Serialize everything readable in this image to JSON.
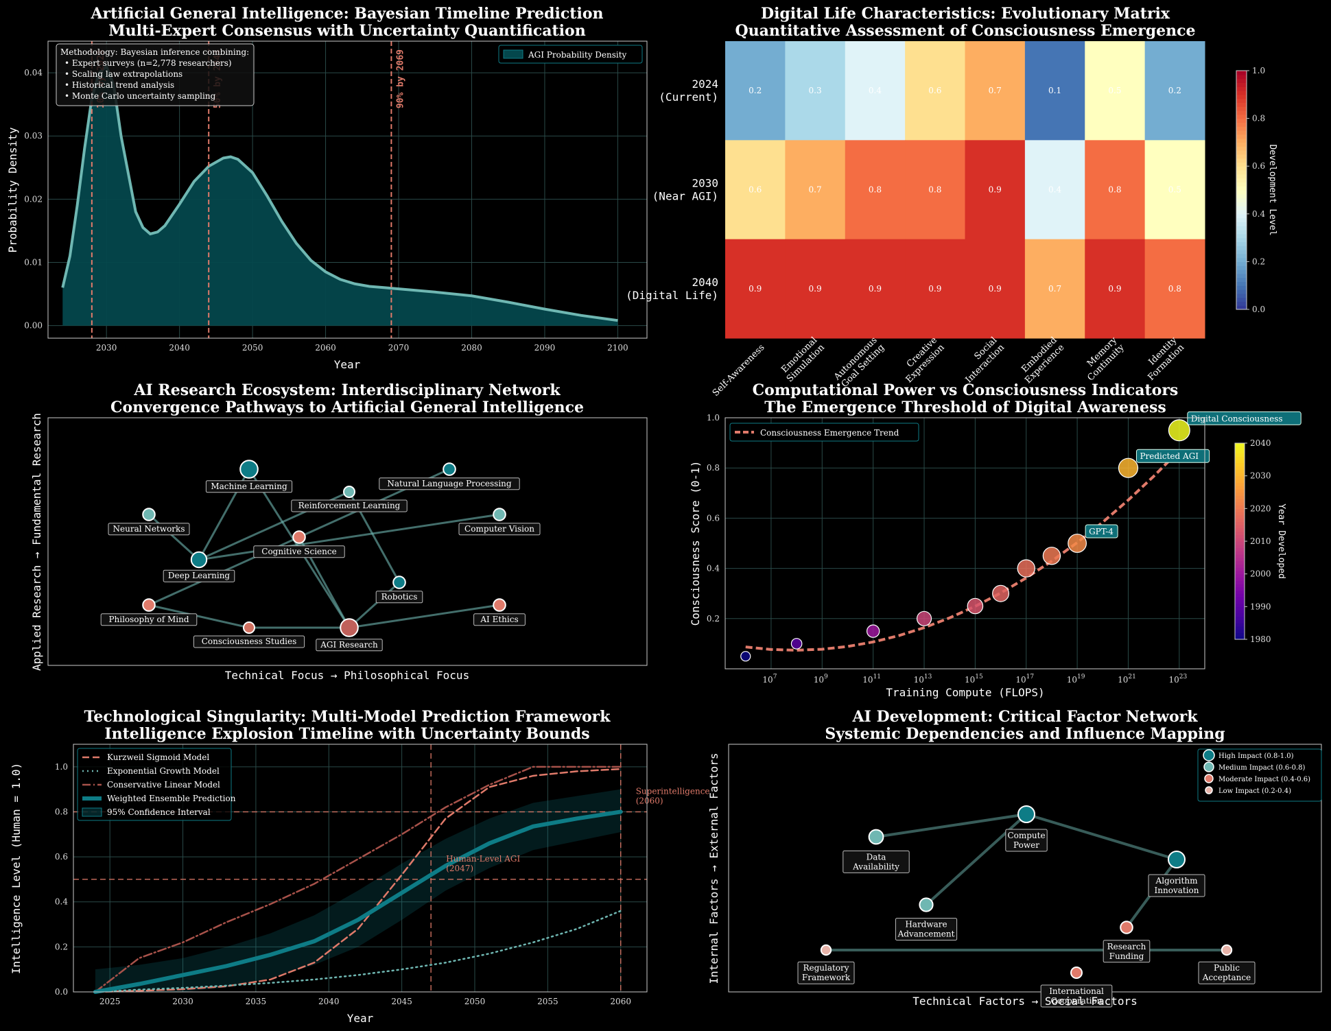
{
  "colors": {
    "teal": "#0e7c86",
    "tealLight": "#6fb7b2",
    "salmon": "#e07a6a",
    "bg": "#000000"
  },
  "chart_data": [
    {
      "id": "agi-timeline",
      "type": "area",
      "title": "Artificial General Intelligence: Bayesian Timeline Prediction",
      "subtitle": "Multi-Expert Consensus with Uncertainty Quantification",
      "xlabel": "Year",
      "ylabel": "Probability Density",
      "xlim": [
        2022,
        2104
      ],
      "ylim": [
        -0.002,
        0.045
      ],
      "xticks": [
        2030,
        2040,
        2050,
        2060,
        2070,
        2080,
        2090,
        2100
      ],
      "yticks": [
        0.0,
        0.01,
        0.02,
        0.03,
        0.04
      ],
      "ytick_labels": [
        "0.00",
        "0.01",
        "0.02",
        "0.03",
        "0.04"
      ],
      "legend": "AGI Probability Density",
      "legend_position": "top-right",
      "x": [
        2024,
        2025,
        2026,
        2027,
        2028,
        2029,
        2030,
        2031,
        2032,
        2033,
        2034,
        2035,
        2036,
        2037,
        2038,
        2040,
        2042,
        2044,
        2046,
        2047,
        2048,
        2050,
        2052,
        2054,
        2056,
        2058,
        2060,
        2062,
        2064,
        2066,
        2068,
        2070,
        2075,
        2080,
        2085,
        2090,
        2095,
        2100
      ],
      "y": [
        0.006,
        0.011,
        0.019,
        0.028,
        0.036,
        0.04,
        0.041,
        0.038,
        0.03,
        0.024,
        0.018,
        0.0155,
        0.0145,
        0.0148,
        0.0158,
        0.0192,
        0.0228,
        0.0252,
        0.0265,
        0.0267,
        0.0263,
        0.0242,
        0.0205,
        0.0165,
        0.013,
        0.0103,
        0.0085,
        0.0073,
        0.0066,
        0.0062,
        0.006,
        0.0058,
        0.0053,
        0.0047,
        0.0037,
        0.0026,
        0.0016,
        0.0008
      ],
      "vlines": [
        {
          "x": 2028,
          "label": "10% by 2028"
        },
        {
          "x": 2044,
          "label": "50% by 2044"
        },
        {
          "x": 2069,
          "label": "90% by 2069"
        }
      ],
      "methodology": [
        "Methodology: Bayesian inference combining:",
        "• Expert surveys (n=2,778 researchers)",
        "• Scaling law extrapolations",
        "• Historical trend analysis",
        "• Monte Carlo uncertainty sampling"
      ]
    },
    {
      "id": "digital-life-matrix",
      "type": "heatmap",
      "title": "Digital Life Characteristics: Evolutionary Matrix",
      "subtitle": "Quantitative Assessment of Consciousness Emergence",
      "rows": [
        [
          "2024",
          "(Current)"
        ],
        [
          "2030",
          "(Near AGI)"
        ],
        [
          "2040",
          "(Digital Life)"
        ]
      ],
      "columns": [
        [
          "Self-Awareness"
        ],
        [
          "Emotional",
          "Simulation"
        ],
        [
          "Autonomous",
          "Goal Setting"
        ],
        [
          "Creative",
          "Expression"
        ],
        [
          "Social",
          "Interaction"
        ],
        [
          "Embodied",
          "Experience"
        ],
        [
          "Memory",
          "Continuity"
        ],
        [
          "Identity",
          "Formation"
        ]
      ],
      "values": [
        [
          0.2,
          0.3,
          0.4,
          0.6,
          0.7,
          0.1,
          0.5,
          0.2
        ],
        [
          0.6,
          0.7,
          0.8,
          0.8,
          0.9,
          0.4,
          0.8,
          0.5
        ],
        [
          0.9,
          0.9,
          0.9,
          0.9,
          0.9,
          0.7,
          0.9,
          0.8
        ]
      ],
      "colorbar": {
        "label": "Development Level",
        "min": 0.0,
        "max": 1.0,
        "ticks": [
          "0.0",
          "0.2",
          "0.4",
          "0.6",
          "0.8",
          "1.0"
        ]
      }
    },
    {
      "id": "research-ecosystem",
      "type": "network",
      "title": "AI Research Ecosystem: Interdisciplinary Network",
      "subtitle": "Convergence Pathways to Artificial General Intelligence",
      "xlabel": "Technical Focus → Philosophical Focus",
      "ylabel": "Applied Research → Fundamental Research",
      "nodes": [
        {
          "name": "Machine Learning",
          "x": 4,
          "y": 9,
          "size": 1.6,
          "color": "#0e7c86"
        },
        {
          "name": "Natural Language Processing",
          "x": 8,
          "y": 9,
          "size": 1.1,
          "color": "#0e7c86"
        },
        {
          "name": "Reinforcement Learning",
          "x": 6,
          "y": 8,
          "size": 1.0,
          "color": "#6fb7b2"
        },
        {
          "name": "Neural Networks",
          "x": 2,
          "y": 7,
          "size": 1.1,
          "color": "#6fb7b2"
        },
        {
          "name": "Computer Vision",
          "x": 9,
          "y": 7,
          "size": 1.1,
          "color": "#6fb7b2"
        },
        {
          "name": "Cognitive Science",
          "x": 5,
          "y": 6,
          "size": 1.1,
          "color": "#e07a6a"
        },
        {
          "name": "Deep Learning",
          "x": 3,
          "y": 5,
          "size": 1.4,
          "color": "#0e7c86"
        },
        {
          "name": "Robotics",
          "x": 7,
          "y": 4,
          "size": 1.1,
          "color": "#0e7c86"
        },
        {
          "name": "Philosophy of Mind",
          "x": 2,
          "y": 3,
          "size": 1.1,
          "color": "#e07a6a"
        },
        {
          "name": "AI Ethics",
          "x": 9,
          "y": 3,
          "size": 1.1,
          "color": "#e07a6a"
        },
        {
          "name": "Consciousness Studies",
          "x": 4,
          "y": 2,
          "size": 1.0,
          "color": "#d07060"
        },
        {
          "name": "AGI Research",
          "x": 6,
          "y": 2,
          "size": 1.6,
          "color": "#c0605a"
        }
      ],
      "edges": [
        [
          "Machine Learning",
          "Deep Learning"
        ],
        [
          "Machine Learning",
          "AGI Research"
        ],
        [
          "Neural Networks",
          "Deep Learning"
        ],
        [
          "Natural Language Processing",
          "Cognitive Science"
        ],
        [
          "Reinforcement Learning",
          "Robotics"
        ],
        [
          "Reinforcement Learning",
          "Deep Learning"
        ],
        [
          "Cognitive Science",
          "Philosophy of Mind"
        ],
        [
          "Deep Learning",
          "Computer Vision"
        ],
        [
          "Cognitive Science",
          "AGI Research"
        ],
        [
          "Philosophy of Mind",
          "Consciousness Studies"
        ],
        [
          "Consciousness Studies",
          "AGI Research"
        ],
        [
          "AGI Research",
          "AI Ethics"
        ],
        [
          "Robotics",
          "AGI Research"
        ]
      ]
    },
    {
      "id": "compute-vs-consciousness",
      "type": "scatter",
      "title": "Computational Power vs Consciousness Indicators",
      "subtitle": "The Emergence Threshold of Digital Awareness",
      "xlabel": "Training Compute (FLOPS)",
      "ylabel": "Consciousness Score (0-1)",
      "xscale": "log",
      "xlim_exp": [
        5.2,
        24
      ],
      "ylim": [
        0.0,
        1.0
      ],
      "xtick_exps": [
        7,
        9,
        11,
        13,
        15,
        17,
        19,
        21,
        23
      ],
      "yticks": [
        0.2,
        0.4,
        0.6,
        0.8,
        1.0
      ],
      "legend": "Consciousness Emergence Trend",
      "legend_position": "top-left",
      "points": [
        {
          "compute": 1000000.0,
          "score": 0.05,
          "year": 1980,
          "size": 1.0
        },
        {
          "compute": 100000000.0,
          "score": 0.1,
          "year": 1990,
          "size": 1.1
        },
        {
          "compute": 100000000000.0,
          "score": 0.15,
          "year": 2000,
          "size": 1.3
        },
        {
          "compute": 10000000000000.0,
          "score": 0.2,
          "year": 2010,
          "size": 1.5
        },
        {
          "compute": 1000000000000000.0,
          "score": 0.25,
          "year": 2013,
          "size": 1.6
        },
        {
          "compute": 1e+16,
          "score": 0.3,
          "year": 2016,
          "size": 1.7
        },
        {
          "compute": 1e+17,
          "score": 0.4,
          "year": 2018,
          "size": 1.8
        },
        {
          "compute": 1e+18,
          "score": 0.45,
          "year": 2020,
          "size": 1.8
        },
        {
          "compute": 1e+19,
          "score": 0.5,
          "year": 2023,
          "size": 1.9
        },
        {
          "compute": 1e+21,
          "score": 0.8,
          "year": 2030,
          "size": 2.0
        },
        {
          "compute": 1e+23,
          "score": 0.95,
          "year": 2040,
          "size": 2.2
        }
      ],
      "annotations": [
        {
          "text": "GPT-4",
          "compute": 1e+19,
          "score": 0.5
        },
        {
          "text": "Predicted AGI",
          "compute": 1e+21,
          "score": 0.8
        },
        {
          "text": "Digital Consciousness",
          "compute": 1e+23,
          "score": 0.95
        }
      ],
      "trend": {
        "exps": [
          6,
          7,
          8,
          9,
          10,
          11,
          12,
          13,
          14,
          15,
          16,
          17,
          18,
          19,
          20,
          21,
          22,
          23
        ],
        "scores": [
          0.087,
          0.077,
          0.074,
          0.078,
          0.089,
          0.107,
          0.132,
          0.164,
          0.203,
          0.249,
          0.302,
          0.362,
          0.429,
          0.503,
          0.584,
          0.672,
          0.767,
          0.869
        ]
      },
      "colorbar": {
        "label": "Year Developed",
        "min": 1980,
        "max": 2040,
        "ticks": [
          "1980",
          "1990",
          "2000",
          "2010",
          "2020",
          "2030",
          "2040"
        ]
      }
    },
    {
      "id": "singularity-models",
      "type": "line",
      "title": "Technological Singularity: Multi-Model Prediction Framework",
      "subtitle": "Intelligence Explosion Timeline with Uncertainty Bounds",
      "xlabel": "Year",
      "ylabel": "Intelligence Level (Human = 1.0)",
      "xlim": [
        2022.5,
        2061.8
      ],
      "ylim": [
        0.0,
        1.1
      ],
      "xticks": [
        2025,
        2030,
        2035,
        2040,
        2045,
        2050,
        2055,
        2060
      ],
      "yticks": [
        0.0,
        0.2,
        0.4,
        0.6,
        0.8,
        1.0
      ],
      "legend_position": "top-left",
      "x": [
        2024,
        2027,
        2030,
        2033,
        2036,
        2039,
        2042,
        2045,
        2048,
        2051,
        2054,
        2057,
        2060
      ],
      "series": [
        {
          "name": "Kurzweil Sigmoid Model",
          "style": "dashed",
          "values": [
            0.0,
            0.005,
            0.012,
            0.025,
            0.055,
            0.13,
            0.28,
            0.52,
            0.77,
            0.91,
            0.96,
            0.98,
            0.99
          ]
        },
        {
          "name": "Exponential Growth Model",
          "style": "dotted",
          "values": [
            0.0,
            0.01,
            0.018,
            0.028,
            0.04,
            0.055,
            0.075,
            0.1,
            0.13,
            0.17,
            0.22,
            0.28,
            0.36
          ]
        },
        {
          "name": "Conservative Linear Model",
          "style": "dashdot",
          "values": [
            0.0,
            0.15,
            0.22,
            0.31,
            0.39,
            0.48,
            0.59,
            0.7,
            0.82,
            0.92,
            1.0,
            1.0,
            1.0
          ]
        },
        {
          "name": "Weighted Ensemble Prediction",
          "style": "solid",
          "values": [
            0.0,
            0.035,
            0.075,
            0.115,
            0.165,
            0.225,
            0.32,
            0.44,
            0.56,
            0.66,
            0.735,
            0.77,
            0.8
          ]
        }
      ],
      "band": {
        "name": "95% Confidence Interval",
        "lower": [
          0.0,
          0.0,
          0.0,
          0.02,
          0.06,
          0.12,
          0.2,
          0.32,
          0.45,
          0.55,
          0.63,
          0.67,
          0.71
        ],
        "upper": [
          0.1,
          0.12,
          0.15,
          0.2,
          0.26,
          0.34,
          0.45,
          0.57,
          0.68,
          0.77,
          0.84,
          0.87,
          0.9
        ]
      },
      "hlines": [
        0.5,
        0.8
      ],
      "vlines": [
        2047,
        2060
      ],
      "annotations": [
        {
          "text": "Human-Level AGI",
          "text2": "(2047)",
          "x": 2047,
          "y": 0.5
        },
        {
          "text": "Superintelligence",
          "text2": "(2060)",
          "x": 2060,
          "y": 0.8
        }
      ]
    },
    {
      "id": "factor-network",
      "type": "network",
      "title": "AI Development: Critical Factor Network",
      "subtitle": "Systemic Dependencies and Influence Mapping",
      "xlabel": "Technical Factors → Social Factors",
      "ylabel": "Internal Factors → External Factors",
      "legend": [
        {
          "label": "High Impact (0.8-1.0)",
          "color": "#0e7c86"
        },
        {
          "label": "Medium Impact (0.6-0.8)",
          "color": "#6fb7b2"
        },
        {
          "label": "Moderate Impact (0.4-0.6)",
          "color": "#e07a6a"
        },
        {
          "label": "Low Impact (0.2-0.4)",
          "color": "#e8b4aa"
        }
      ],
      "nodes": [
        {
          "name": [
            "Compute",
            "Power"
          ],
          "key": "compute",
          "x": 4,
          "y": 9,
          "size": 1.5,
          "color": "#0e7c86"
        },
        {
          "name": [
            "Data",
            "Availability"
          ],
          "key": "data",
          "x": 1,
          "y": 8,
          "size": 1.3,
          "color": "#6fb7b2"
        },
        {
          "name": [
            "Algorithm",
            "Innovation"
          ],
          "key": "algo",
          "x": 7,
          "y": 7,
          "size": 1.5,
          "color": "#0e7c86"
        },
        {
          "name": [
            "Hardware",
            "Advancement"
          ],
          "key": "hw",
          "x": 2,
          "y": 5,
          "size": 1.2,
          "color": "#6fb7b2"
        },
        {
          "name": [
            "Research",
            "Funding"
          ],
          "key": "funding",
          "x": 6,
          "y": 4,
          "size": 1.1,
          "color": "#e07a6a"
        },
        {
          "name": [
            "Regulatory",
            "Framework"
          ],
          "key": "reg",
          "x": 0,
          "y": 3,
          "size": 0.9,
          "color": "#e8b4aa"
        },
        {
          "name": [
            "Public",
            "Acceptance"
          ],
          "key": "public",
          "x": 8,
          "y": 3,
          "size": 0.9,
          "color": "#e8b4aa"
        },
        {
          "name": [
            "International",
            "Cooperation"
          ],
          "key": "intl",
          "x": 5,
          "y": 2,
          "size": 1.0,
          "color": "#e07a6a"
        }
      ],
      "edges": [
        [
          "data",
          "compute"
        ],
        [
          "compute",
          "algo"
        ],
        [
          "compute",
          "hw"
        ],
        [
          "algo",
          "funding"
        ],
        [
          "reg",
          "public"
        ]
      ]
    }
  ]
}
